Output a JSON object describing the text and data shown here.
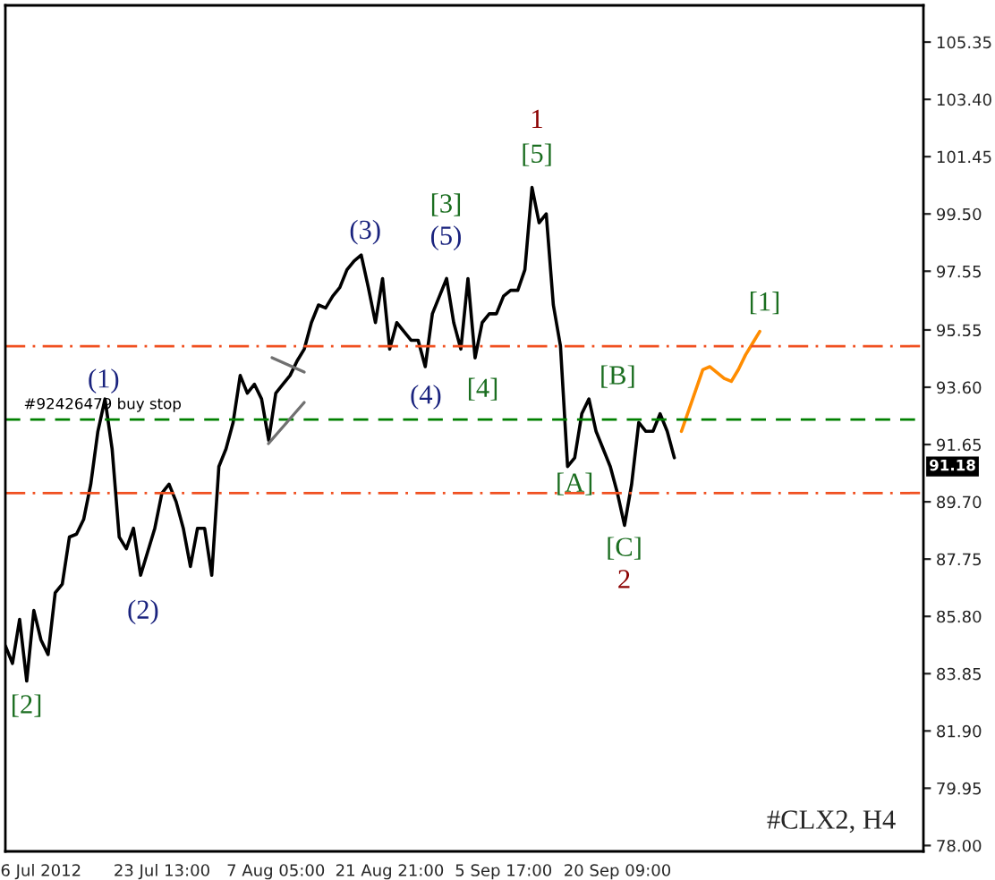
{
  "chart_data": {
    "type": "line",
    "categories": [
      null,
      null,
      null,
      null,
      null,
      "6 Jul 2012",
      null,
      null,
      null,
      null,
      null,
      null,
      null,
      null,
      null,
      null,
      null,
      null,
      null,
      null,
      null,
      null,
      "23 Jul 13:00",
      null,
      null,
      null,
      null,
      null,
      null,
      null,
      null,
      null,
      null,
      null,
      null,
      null,
      null,
      null,
      "7 Aug 05:00",
      null,
      null,
      null,
      null,
      null,
      null,
      null,
      null,
      null,
      null,
      null,
      null,
      null,
      null,
      null,
      "21 Aug 21:00",
      null,
      null,
      null,
      null,
      null,
      null,
      null,
      null,
      null,
      null,
      null,
      null,
      null,
      null,
      null,
      "5 Sep 17:00",
      null,
      null,
      null,
      null,
      null,
      null,
      null,
      null,
      null,
      null,
      null,
      null,
      null,
      null,
      null,
      "20 Sep 09:00",
      null,
      null,
      null,
      null,
      null,
      null,
      null,
      null,
      null,
      null,
      null,
      null,
      null,
      null,
      null,
      null,
      null,
      null,
      null,
      null,
      null,
      null,
      null,
      null,
      null,
      null,
      null,
      null,
      null,
      null,
      null,
      null,
      null,
      null,
      null,
      null,
      null,
      null,
      null,
      null,
      null,
      null,
      null
    ],
    "series": [
      {
        "color": "#000000",
        "values": [
          84.8,
          84.2,
          85.7,
          83.6,
          86.0,
          85.0,
          84.5,
          86.6,
          86.9,
          88.5,
          88.6,
          89.1,
          90.3,
          92.1,
          93.2,
          91.5,
          88.5,
          88.1,
          88.8,
          87.2,
          88.0,
          88.8,
          90.0,
          90.3,
          89.7,
          88.8,
          87.5,
          88.8,
          88.8,
          87.2,
          90.9,
          91.5,
          92.4,
          94.0,
          93.4,
          93.7,
          93.2,
          91.8,
          93.4,
          93.7,
          94.0,
          94.5,
          94.9,
          95.8,
          96.4,
          96.3,
          96.7,
          97.0,
          97.6,
          97.9,
          98.1,
          97.0,
          95.8,
          97.3,
          94.9,
          95.8,
          95.5,
          95.2,
          95.2,
          94.3,
          96.1,
          96.7,
          97.3,
          95.8,
          94.9,
          97.3,
          94.6,
          95.8,
          96.1,
          96.1,
          96.7,
          96.9,
          96.9,
          97.6,
          100.4,
          99.2,
          99.5,
          96.4,
          95.0,
          90.9,
          91.2,
          92.7,
          93.2,
          92.1,
          91.5,
          90.9,
          90.0,
          88.9,
          90.3,
          92.4,
          92.1,
          92.1,
          92.7,
          92.1,
          91.2,
          null,
          null,
          null,
          null,
          null,
          null,
          null,
          null,
          null,
          null,
          null,
          null,
          null,
          null,
          null,
          null,
          null,
          null,
          null,
          null,
          null,
          null,
          null,
          null,
          null,
          null,
          null,
          null,
          null,
          null,
          null,
          null,
          null,
          null,
          null
        ]
      },
      {
        "color": "#ff8c00",
        "values": [
          null,
          null,
          null,
          null,
          null,
          null,
          null,
          null,
          null,
          null,
          null,
          null,
          null,
          null,
          null,
          null,
          null,
          null,
          null,
          null,
          null,
          null,
          null,
          null,
          null,
          null,
          null,
          null,
          null,
          null,
          null,
          null,
          null,
          null,
          null,
          null,
          null,
          null,
          null,
          null,
          null,
          null,
          null,
          null,
          null,
          null,
          null,
          null,
          null,
          null,
          null,
          null,
          null,
          null,
          null,
          null,
          null,
          null,
          null,
          null,
          null,
          null,
          null,
          null,
          null,
          null,
          null,
          null,
          null,
          null,
          null,
          null,
          null,
          null,
          null,
          null,
          null,
          null,
          null,
          null,
          null,
          null,
          null,
          null,
          null,
          null,
          null,
          null,
          null,
          null,
          null,
          null,
          null,
          null,
          null,
          92.1,
          92.8,
          93.5,
          94.2,
          94.3,
          94.1,
          93.9,
          93.8,
          94.2,
          94.7,
          95.1,
          95.5,
          null,
          null,
          null,
          null,
          null,
          null,
          null,
          null,
          null,
          null,
          null,
          null,
          null,
          null,
          null,
          null,
          null,
          null,
          null,
          null,
          null,
          null,
          null
        ]
      }
    ],
    "ylim": [
      77.8,
      106.6
    ],
    "yticks": [
      {
        "value": 78,
        "label": "78.00"
      },
      {
        "value": 79.95,
        "label": "79.95"
      },
      {
        "value": 81.9,
        "label": "81.90"
      },
      {
        "value": 83.85,
        "label": "83.85"
      },
      {
        "value": 85.8,
        "label": "85.80"
      },
      {
        "value": 87.75,
        "label": "87.75"
      },
      {
        "value": 89.7,
        "label": "89.70"
      },
      {
        "value": 91.65,
        "label": "91.65"
      },
      {
        "value": 93.6,
        "label": "93.60"
      },
      {
        "value": 95.55,
        "label": "95.55"
      },
      {
        "value": 97.55,
        "label": "97.55"
      },
      {
        "value": 99.5,
        "label": "99.50"
      },
      {
        "value": 101.45,
        "label": "101.45"
      },
      {
        "value": 103.4,
        "label": "103.40"
      },
      {
        "value": 105.35,
        "label": "105.35"
      }
    ],
    "ref_lines": [
      {
        "axis": "y",
        "value": 95.0,
        "color": "#f05020",
        "line_style": "dashdot"
      },
      {
        "axis": "y",
        "value": 90.0,
        "color": "#f05020",
        "line_style": "dashdot"
      },
      {
        "axis": "y",
        "value": 92.5,
        "color": "#008000",
        "line_style": "dashed",
        "label": "#92426479 buy stop"
      }
    ],
    "annotations": [
      "[2]",
      "(1)",
      "(2)",
      "(3)",
      "[3]",
      "(5)",
      "(4)",
      "[4]",
      "1",
      "[5]",
      "[B]",
      "[A]",
      "[C]",
      "2",
      "[1]",
      "#CLX2, H4",
      "91.18"
    ],
    "grid": false,
    "legend": false
  }
}
